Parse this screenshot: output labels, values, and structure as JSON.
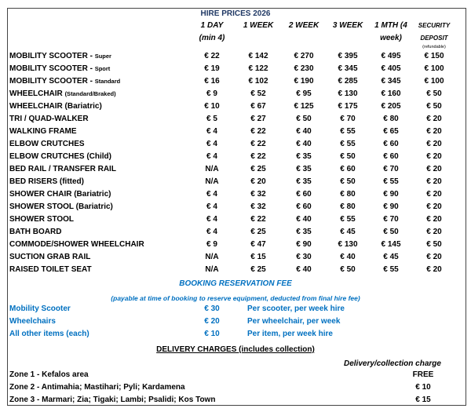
{
  "title": "HIRE PRICES 2026",
  "headers": [
    [
      "1 DAY",
      "(min 4)"
    ],
    [
      "1 WEEK",
      ""
    ],
    [
      "2 WEEK",
      ""
    ],
    [
      "3 WEEK",
      ""
    ],
    [
      "1 MTH (4",
      "week)"
    ],
    [
      "SECURITY",
      "DEPOSIT"
    ]
  ],
  "deposit_note": "(refundable)",
  "items": [
    {
      "name": "MOBILITY SCOOTER - ",
      "sub": "Super",
      "prices": [
        "€ 22",
        "€ 142",
        "€ 270",
        "€ 395",
        "€ 495",
        "€ 150"
      ]
    },
    {
      "name": "MOBILITY SCOOTER - ",
      "sub": "Sport",
      "prices": [
        "€ 19",
        "€ 122",
        "€ 230",
        "€ 345",
        "€ 405",
        "€ 100"
      ]
    },
    {
      "name": "MOBILITY SCOOTER  - ",
      "sub": "Standard",
      "prices": [
        "€ 16",
        "€ 102",
        "€ 190",
        "€ 285",
        "€ 345",
        "€ 100"
      ]
    },
    {
      "name": "WHEELCHAIR  ",
      "sub": "(Standard/Braked)",
      "prices": [
        "€ 9",
        "€ 52",
        "€ 95",
        "€ 130",
        "€ 160",
        "€ 50"
      ]
    },
    {
      "name": "WHEELCHAIR (Bariatric)",
      "sub": "",
      "prices": [
        "€ 10",
        "€ 67",
        "€ 125",
        "€ 175",
        "€ 205",
        "€ 50"
      ]
    },
    {
      "name": "TRI / QUAD-WALKER",
      "sub": "",
      "prices": [
        "€ 5",
        "€ 27",
        "€ 50",
        "€ 70",
        "€ 80",
        "€ 20"
      ]
    },
    {
      "name": "WALKING FRAME",
      "sub": "",
      "prices": [
        "€ 4",
        "€ 22",
        "€ 40",
        "€ 55",
        "€ 65",
        "€ 20"
      ]
    },
    {
      "name": "ELBOW CRUTCHES",
      "sub": "",
      "prices": [
        "€ 4",
        "€ 22",
        "€ 40",
        "€ 55",
        "€ 60",
        "€ 20"
      ]
    },
    {
      "name": "ELBOW CRUTCHES (Child)",
      "sub": "",
      "prices": [
        "€ 4",
        "€ 22",
        "€ 35",
        "€ 50",
        "€ 60",
        "€ 20"
      ]
    },
    {
      "name": "BED RAIL / TRANSFER RAIL",
      "sub": "",
      "prices": [
        "N/A",
        "€ 25",
        "€ 35",
        "€ 60",
        "€ 70",
        "€ 20"
      ]
    },
    {
      "name": "BED RISERS (fitted)",
      "sub": "",
      "prices": [
        "N/A",
        "€ 20",
        "€ 35",
        "€ 50",
        "€ 55",
        "€ 20"
      ]
    },
    {
      "name": "SHOWER  CHAIR (Bariatric)",
      "sub": "",
      "prices": [
        "€ 4",
        "€ 32",
        "€ 60",
        "€ 80",
        "€ 90",
        "€ 20"
      ]
    },
    {
      "name": "SHOWER STOOL (Bariatric)",
      "sub": "",
      "prices": [
        "€ 4",
        "€ 32",
        "€ 60",
        "€ 80",
        "€ 90",
        "€ 20"
      ]
    },
    {
      "name": "SHOWER STOOL",
      "sub": "",
      "prices": [
        "€ 4",
        "€ 22",
        "€ 40",
        "€ 55",
        "€ 70",
        "€ 20"
      ]
    },
    {
      "name": "BATH BOARD",
      "sub": "",
      "prices": [
        "€ 4",
        "€ 25",
        "€ 35",
        "€ 45",
        "€ 50",
        "€ 20"
      ]
    },
    {
      "name": "COMMODE/SHOWER WHEELCHAIR",
      "sub": "",
      "prices": [
        "€ 9",
        "€ 47",
        "€ 90",
        "€ 130",
        "€ 145",
        "€ 50"
      ]
    },
    {
      "name": "SUCTION GRAB RAIL",
      "sub": "",
      "prices": [
        "N/A",
        "€ 15",
        "€ 30",
        "€ 40",
        "€ 45",
        "€ 20"
      ]
    },
    {
      "name": "RAISED TOILET SEAT",
      "sub": "",
      "prices": [
        "N/A",
        "€ 25",
        "€ 40",
        "€ 50",
        "€ 55",
        "€ 20"
      ]
    }
  ],
  "booking": {
    "title": "BOOKING RESERVATION FEE",
    "subtitle": "(payable at time of booking to reserve equipment, deducted from final hire fee)",
    "rows": [
      {
        "item": "Mobility Scooter",
        "fee": "€ 30",
        "note": "Per scooter, per week hire"
      },
      {
        "item": "Wheelchairs",
        "fee": "€ 20",
        "note": "Per wheelchair, per week"
      },
      {
        "item": "All other items (each)",
        "fee": "€ 10",
        "note": "Per item, per week hire"
      }
    ]
  },
  "delivery": {
    "title": "DELIVERY  CHARGES (includes collection)",
    "charge_header": "Delivery/collection charge",
    "zones": [
      {
        "zone": "Zone 1 - Kefalos area",
        "charge": "FREE"
      },
      {
        "zone": "Zone 2 - Antimahia; Mastihari; Pyli; Kardamena",
        "charge": "€ 10"
      },
      {
        "zone": "Zone 3 - Marmari; Zia; Tigaki; Lambi; Psalidi; Kos Town",
        "charge": "€ 15"
      }
    ]
  },
  "colors": {
    "title": "#1f3864",
    "blue": "#0070c0"
  }
}
